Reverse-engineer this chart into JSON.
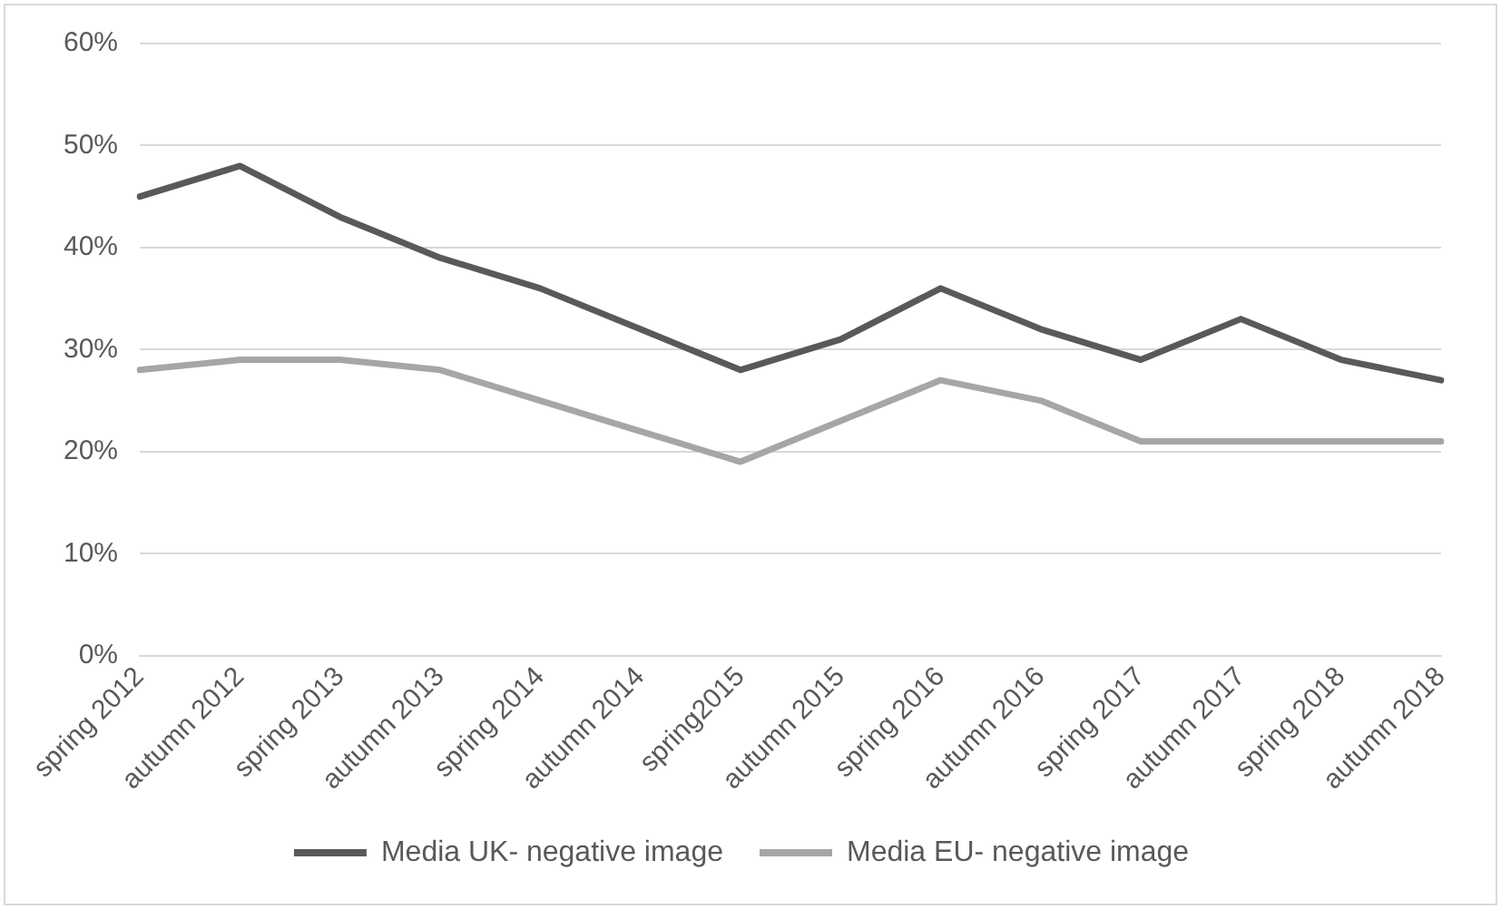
{
  "chart_data": {
    "type": "line",
    "categories": [
      "spring 2012",
      "autumn 2012",
      "spring 2013",
      "autumn 2013",
      "spring 2014",
      "autumn 2014",
      "spring2015",
      "autumn 2015",
      "spring 2016",
      "autumn 2016",
      "spring 2017",
      "autumn 2017",
      "spring 2018",
      "autumn 2018"
    ],
    "series": [
      {
        "name": "Media UK- negative image",
        "color": "#595959",
        "values": [
          45,
          48,
          43,
          39,
          36,
          32,
          28,
          31,
          36,
          32,
          29,
          33,
          29,
          27
        ]
      },
      {
        "name": "Media EU- negative image",
        "color": "#a6a6a6",
        "values": [
          28,
          29,
          29,
          28,
          25,
          22,
          19,
          23,
          27,
          25,
          21,
          21,
          21,
          21
        ]
      }
    ],
    "ylim": [
      0,
      60
    ],
    "yticks": [
      {
        "value": 0,
        "label": "0%"
      },
      {
        "value": 10,
        "label": "10%"
      },
      {
        "value": 20,
        "label": "20%"
      },
      {
        "value": 30,
        "label": "30%"
      },
      {
        "value": 40,
        "label": "40%"
      },
      {
        "value": 50,
        "label": "50%"
      },
      {
        "value": 60,
        "label": "60%"
      }
    ],
    "grid": "y",
    "legend": "bottom",
    "marker": "none",
    "line_style": "solid"
  }
}
